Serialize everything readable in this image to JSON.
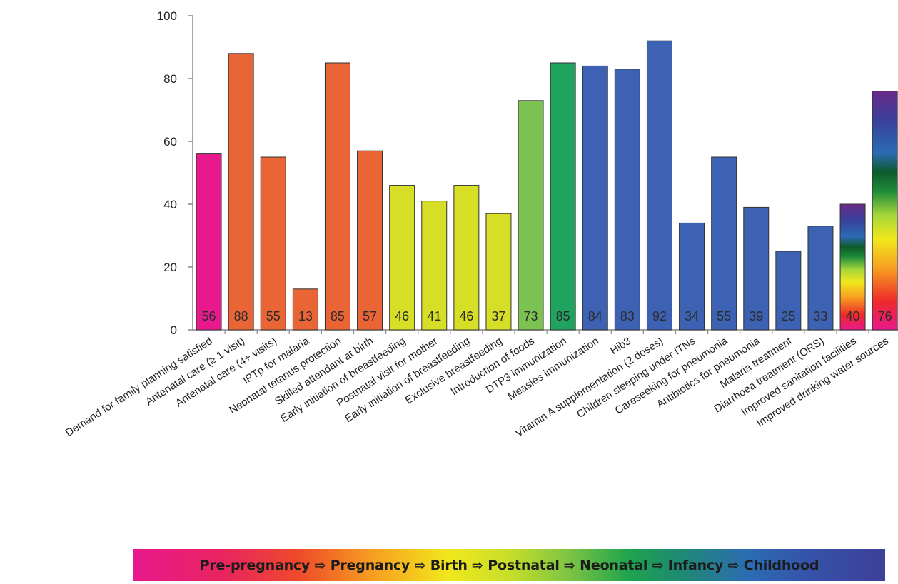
{
  "chart_data": {
    "type": "bar",
    "categories": [
      "Demand for family planning satisfied",
      "Antenatal care (≥ 1 visit)",
      "Antenatal care (4+ visits)",
      "IPTp for malaria",
      "Neonatal tetanus protection",
      "Skilled attendant at birth",
      "Early initiation of breastfeeding",
      "Postnatal visit for mother",
      "Early initiation of breastfeeding",
      "Exclusive breastfeeding",
      "Introduction of foods",
      "DTP3 immunization",
      "Measles immunization",
      "Hib3",
      "Vitamin A supplementation (2 doses)",
      "Children sleeping under ITNs",
      "Careseeking for pneumonia",
      "Antibiotics for pneumonia",
      "Malaria treatment",
      "Diarrhoea treatment (ORS)",
      "Improved sanitation facilities",
      "Improved drinking water sources"
    ],
    "values": [
      56,
      88,
      55,
      13,
      85,
      57,
      46,
      41,
      46,
      37,
      73,
      85,
      84,
      83,
      92,
      34,
      55,
      39,
      25,
      33,
      40,
      76
    ],
    "value_labels": [
      "56",
      "88",
      "55",
      "13",
      "85",
      "57",
      "46",
      "41",
      "46",
      "37",
      "73",
      "85",
      "84",
      "83",
      "92",
      "34",
      "55",
      "39",
      "25",
      "33",
      "40",
      "76"
    ],
    "colors": [
      "#e8198c",
      "#ea6535",
      "#ea6535",
      "#ea6535",
      "#ea6535",
      "#ea6535",
      "#d6de26",
      "#d6de26",
      "#d6de26",
      "#d6de26",
      "#7cc253",
      "#1fa35f",
      "#3d62b3",
      "#3d62b3",
      "#3d62b3",
      "#3d62b3",
      "#3d62b3",
      "#3d62b3",
      "#3d62b3",
      "#3d62b3",
      "rainbow",
      "rainbow"
    ],
    "y_ticks": [
      "0",
      "20",
      "40",
      "60",
      "80",
      "100"
    ],
    "ylim": [
      0,
      100
    ],
    "title": "",
    "xlabel": "",
    "ylabel": "",
    "grid": false,
    "legend": "none"
  },
  "stage_banner": {
    "text": "Pre-pregnancy ⇨ Pregnancy ⇨ Birth ⇨ Postnatal ⇨ Neonatal ⇨ Infancy ⇨ Childhood"
  }
}
